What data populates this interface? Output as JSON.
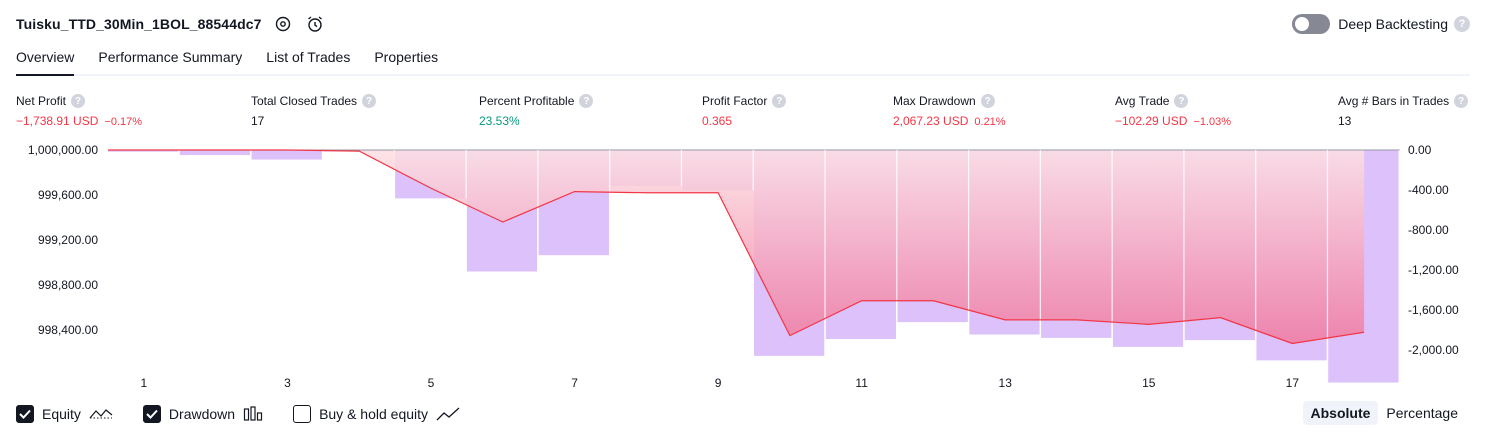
{
  "header": {
    "title": "Tuisku_TTD_30Min_1BOL_88544dc7",
    "settings_icon": "gear-icon",
    "alert_icon": "alarm-add-icon"
  },
  "deep_backtesting": {
    "label": "Deep Backtesting",
    "enabled": false
  },
  "tabs": [
    {
      "label": "Overview",
      "active": true
    },
    {
      "label": "Performance Summary",
      "active": false
    },
    {
      "label": "List of Trades",
      "active": false
    },
    {
      "label": "Properties",
      "active": false
    }
  ],
  "metrics": [
    {
      "label": "Net Profit",
      "value": "−1,738.91 USD",
      "sub": "−0.17%",
      "color": "#f23645"
    },
    {
      "label": "Total Closed Trades",
      "value": "17",
      "sub": "",
      "color": "#131722"
    },
    {
      "label": "Percent Profitable",
      "value": "23.53%",
      "sub": "",
      "color": "#089981"
    },
    {
      "label": "Profit Factor",
      "value": "0.365",
      "sub": "",
      "color": "#f23645"
    },
    {
      "label": "Max Drawdown",
      "value": "2,067.23 USD",
      "sub": "0.21%",
      "color": "#f23645"
    },
    {
      "label": "Avg Trade",
      "value": "−102.29 USD",
      "sub": "−1.03%",
      "color": "#f23645"
    },
    {
      "label": "Avg # Bars in Trades",
      "value": "13",
      "sub": "",
      "color": "#131722"
    }
  ],
  "chart_data": {
    "type": "area",
    "x_ticks": [
      "1",
      "3",
      "5",
      "7",
      "9",
      "11",
      "13",
      "15",
      "17"
    ],
    "x_range": [
      0.5,
      18.5
    ],
    "left_axis": {
      "ticks": [
        "1,000,000.00",
        "999,600.00",
        "999,200.00",
        "998,800.00",
        "998,400.00"
      ],
      "range": [
        998200,
        1000000
      ]
    },
    "right_axis": {
      "ticks": [
        "0.00",
        "-400.00",
        "-800.00",
        "-1,200.00",
        "-1,600.00",
        "-2,000.00"
      ],
      "range": [
        -2080,
        0
      ]
    },
    "equity": [
      {
        "x": 0.5,
        "y": 1000000
      },
      {
        "x": 1,
        "y": 1000000
      },
      {
        "x": 2,
        "y": 1000000
      },
      {
        "x": 3,
        "y": 1000000
      },
      {
        "x": 4,
        "y": 999990
      },
      {
        "x": 5,
        "y": 999660
      },
      {
        "x": 6,
        "y": 999360
      },
      {
        "x": 7,
        "y": 999630
      },
      {
        "x": 8,
        "y": 999620
      },
      {
        "x": 9,
        "y": 999620
      },
      {
        "x": 10,
        "y": 998350
      },
      {
        "x": 11,
        "y": 998660
      },
      {
        "x": 12,
        "y": 998660
      },
      {
        "x": 13,
        "y": 998490
      },
      {
        "x": 14,
        "y": 998490
      },
      {
        "x": 15,
        "y": 998450
      },
      {
        "x": 16,
        "y": 998510
      },
      {
        "x": 17,
        "y": 998280
      },
      {
        "x": 18,
        "y": 998380
      }
    ],
    "drawdown": [
      {
        "trade": 1,
        "value": -15
      },
      {
        "trade": 2,
        "value": -45
      },
      {
        "trade": 3,
        "value": -85
      },
      {
        "trade": 4,
        "value": -10
      },
      {
        "trade": 5,
        "value": -430
      },
      {
        "trade": 6,
        "value": -1080
      },
      {
        "trade": 7,
        "value": -935
      },
      {
        "trade": 8,
        "value": -320
      },
      {
        "trade": 9,
        "value": -360
      },
      {
        "trade": 10,
        "value": -1830
      },
      {
        "trade": 11,
        "value": -1680
      },
      {
        "trade": 12,
        "value": -1530
      },
      {
        "trade": 13,
        "value": -1640
      },
      {
        "trade": 14,
        "value": -1670
      },
      {
        "trade": 15,
        "value": -1750
      },
      {
        "trade": 16,
        "value": -1690
      },
      {
        "trade": 17,
        "value": -1870
      },
      {
        "trade": 18,
        "value": -2067
      }
    ],
    "colors": {
      "equity_line": "#f23645",
      "drawdown_bar": "#d7b6f9",
      "equity_fill_top": "#fde0e3",
      "equity_fill_bottom": "#f07aa0"
    }
  },
  "footer": {
    "toggles": [
      {
        "label": "Equity",
        "checked": true,
        "icon": "equity-line-icon"
      },
      {
        "label": "Drawdown",
        "checked": true,
        "icon": "drawdown-bars-icon"
      },
      {
        "label": "Buy & hold equity",
        "checked": false,
        "icon": "buy-hold-line-icon"
      }
    ],
    "modes": [
      {
        "label": "Absolute",
        "active": true
      },
      {
        "label": "Percentage",
        "active": false
      }
    ]
  }
}
